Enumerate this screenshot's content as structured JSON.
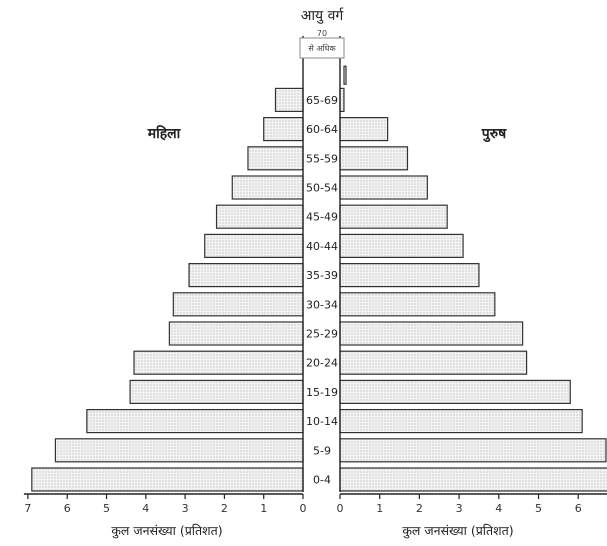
{
  "chart_data": {
    "type": "bar",
    "title": "आयु वर्ग",
    "left_label": "महिला",
    "right_label": "पुरुष",
    "left_xlabel": "कुल जनसंख्या (प्रतिशत)",
    "right_xlabel": "कुल जनसंख्या (प्रतिशत)",
    "top_category": {
      "line1": "70",
      "line2": "से अधिक"
    },
    "categories": [
      "0-4",
      "5-9",
      "10-14",
      "15-19",
      "20-24",
      "25-29",
      "30-34",
      "35-39",
      "40-44",
      "45-49",
      "50-54",
      "55-59",
      "60-64",
      "65-69"
    ],
    "series": [
      {
        "name": "महिला",
        "values": [
          6.9,
          6.3,
          5.5,
          4.4,
          4.3,
          3.4,
          3.3,
          2.9,
          2.5,
          2.2,
          1.8,
          1.4,
          1.0,
          0.7
        ]
      },
      {
        "name": "पुरुष",
        "values": [
          6.8,
          6.7,
          6.1,
          5.8,
          4.7,
          4.6,
          3.9,
          3.5,
          3.1,
          2.7,
          2.2,
          1.7,
          1.2,
          0.1
        ]
      }
    ],
    "top_values": {
      "महिला": 0.0,
      "पुरुष": 0.05
    },
    "left_ticks": [
      "7",
      "6",
      "5",
      "4",
      "3",
      "2",
      "1",
      "0"
    ],
    "right_ticks": [
      "0",
      "1",
      "2",
      "3",
      "4",
      "5",
      "6"
    ],
    "xlim": [
      0,
      7
    ]
  }
}
